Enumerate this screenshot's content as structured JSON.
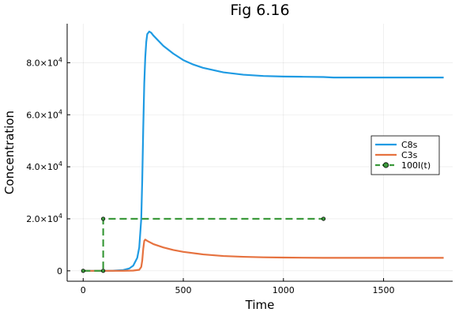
{
  "chart_data": {
    "type": "line",
    "title": "Fig 6.16",
    "xlabel": "Time",
    "ylabel": "Concentration",
    "xlim": [
      -80,
      1845
    ],
    "ylim": [
      -4000,
      95000
    ],
    "grid": true,
    "legend_position": "right",
    "x_ticks": [
      {
        "value": 0,
        "label": "0"
      },
      {
        "value": 500,
        "label": "500"
      },
      {
        "value": 1000,
        "label": "1000"
      },
      {
        "value": 1500,
        "label": "1500"
      }
    ],
    "y_ticks": [
      {
        "value": 0,
        "mantissa": "0",
        "exp": ""
      },
      {
        "value": 20000,
        "mantissa": "2.0×10",
        "exp": "4"
      },
      {
        "value": 40000,
        "mantissa": "4.0×10",
        "exp": "4"
      },
      {
        "value": 60000,
        "mantissa": "6.0×10",
        "exp": "4"
      },
      {
        "value": 80000,
        "mantissa": "8.0×10",
        "exp": "4"
      }
    ],
    "series": [
      {
        "name": "C8s",
        "color": "#1f9be3",
        "style": "solid",
        "x": [
          0,
          100,
          150,
          200,
          230,
          250,
          270,
          280,
          290,
          295,
          300,
          305,
          310,
          315,
          320,
          330,
          340,
          350,
          400,
          450,
          500,
          550,
          600,
          700,
          800,
          900,
          1000,
          1100,
          1200,
          1250,
          1300,
          1500,
          1800
        ],
        "y": [
          0,
          0,
          50,
          300,
          900,
          2000,
          5000,
          9000,
          20000,
          35000,
          55000,
          72000,
          82000,
          88000,
          91000,
          92000,
          91500,
          90500,
          86500,
          83500,
          81000,
          79300,
          78000,
          76300,
          75400,
          74900,
          74700,
          74600,
          74500,
          74300,
          74300,
          74300,
          74300
        ]
      },
      {
        "name": "C3s",
        "color": "#e6723f",
        "style": "solid",
        "x": [
          0,
          100,
          200,
          250,
          280,
          290,
          295,
          300,
          305,
          310,
          320,
          350,
          400,
          450,
          500,
          600,
          700,
          800,
          900,
          1000,
          1200,
          1500,
          1800
        ],
        "y": [
          0,
          0,
          20,
          100,
          400,
          1500,
          4000,
          8500,
          11500,
          12000,
          11500,
          10300,
          9000,
          8000,
          7300,
          6300,
          5700,
          5400,
          5200,
          5100,
          5000,
          5000,
          5000
        ]
      },
      {
        "name": "100I(t)",
        "color": "#3c9a3c",
        "style": "dashed",
        "markers": true,
        "x": [
          0,
          100,
          100,
          1200
        ],
        "y": [
          0,
          0,
          20000,
          20000
        ]
      }
    ]
  }
}
